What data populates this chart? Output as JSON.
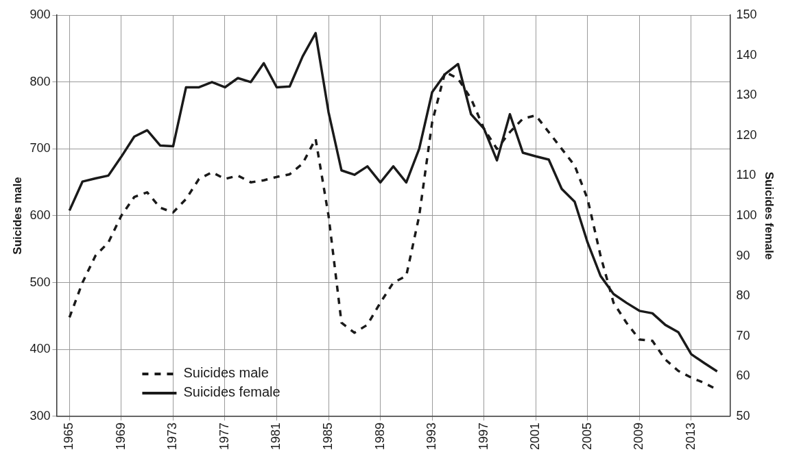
{
  "chart_data": {
    "type": "line",
    "ylabel": "Suicides male",
    "y2label": "Suicides female",
    "x": [
      1965,
      1966,
      1967,
      1968,
      1969,
      1970,
      1971,
      1972,
      1973,
      1974,
      1975,
      1976,
      1977,
      1978,
      1979,
      1980,
      1981,
      1982,
      1983,
      1984,
      1985,
      1986,
      1987,
      1988,
      1989,
      1990,
      1991,
      1992,
      1993,
      1994,
      1995,
      1996,
      1997,
      1998,
      1999,
      2000,
      2001,
      2002,
      2003,
      2004,
      2005,
      2006,
      2007,
      2008,
      2009,
      2010,
      2011,
      2012,
      2013,
      2014,
      2015
    ],
    "series": [
      {
        "name": "Suicides male",
        "color": "#1a1a1a",
        "line_style": "dashed",
        "values": [
          448,
          500,
          540,
          560,
          600,
          628,
          635,
          612,
          605,
          625,
          655,
          665,
          655,
          660,
          650,
          653,
          658,
          662,
          678,
          715,
          600,
          440,
          425,
          437,
          470,
          500,
          510,
          600,
          740,
          815,
          805,
          775,
          730,
          700,
          725,
          745,
          750,
          725,
          700,
          675,
          625,
          540,
          470,
          440,
          415,
          413,
          385,
          368,
          358,
          350,
          340
        ]
      },
      {
        "name": "Suicides female",
        "color": "#1a1a1a",
        "line_style": "solid",
        "axis": "y2",
        "values": [
          101.3,
          108.5,
          109.3,
          110,
          114.7,
          119.7,
          121.3,
          117.5,
          117.3,
          132,
          132,
          133.3,
          132,
          134.3,
          133.3,
          138,
          132,
          132.2,
          139.7,
          145.5,
          125.8,
          111.3,
          110.2,
          112.3,
          108.3,
          112.3,
          108.3,
          116.7,
          130.8,
          135.3,
          137.8,
          125.3,
          121.7,
          113.8,
          125.3,
          115.7,
          114.8,
          114,
          106.7,
          103.5,
          93.3,
          85,
          80.5,
          78.3,
          76.3,
          75.7,
          72.8,
          71,
          65.5,
          63.3,
          61.2
        ]
      }
    ],
    "xlim": [
      1964,
      2016
    ],
    "xticks": [
      1965,
      1969,
      1973,
      1977,
      1981,
      1985,
      1989,
      1993,
      1997,
      2001,
      2005,
      2009,
      2013
    ],
    "ylim": [
      300,
      900
    ],
    "yticks": [
      300,
      400,
      500,
      600,
      700,
      800,
      900
    ],
    "y2lim": [
      50,
      150
    ],
    "y2ticks": [
      50,
      60,
      70,
      80,
      90,
      100,
      110,
      120,
      130,
      140,
      150
    ],
    "grid": true,
    "legend": "bottom left",
    "marker": "none"
  }
}
